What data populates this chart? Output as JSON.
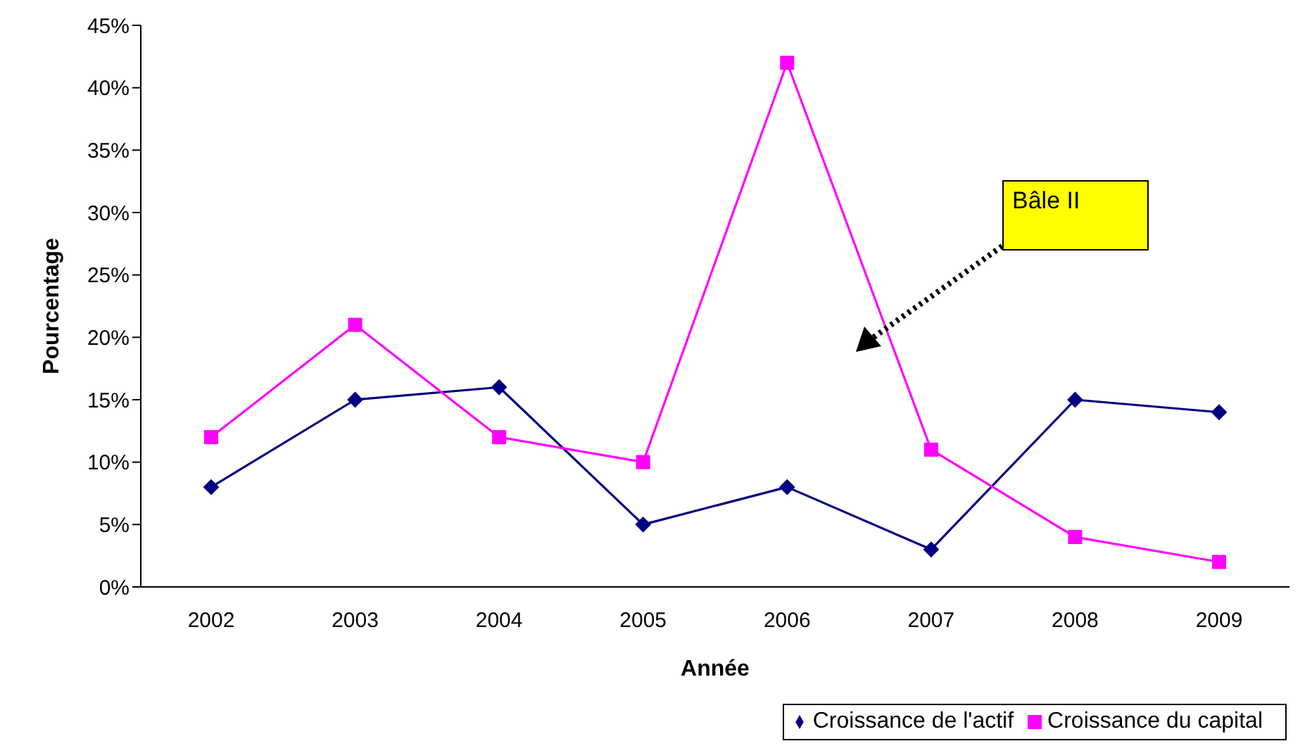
{
  "chart_data": {
    "type": "line",
    "xlabel": "Année",
    "ylabel": "Pourcentage",
    "categories": [
      "2002",
      "2003",
      "2004",
      "2005",
      "2006",
      "2007",
      "2008",
      "2009"
    ],
    "series": [
      {
        "name": "Croissance de l'actif",
        "color": "#000080",
        "marker": "diamond",
        "values": [
          8,
          15,
          16,
          5,
          8,
          3,
          15,
          14
        ]
      },
      {
        "name": "Croissance du capital",
        "color": "#ff00ff",
        "marker": "square",
        "values": [
          12,
          21,
          12,
          10,
          42,
          11,
          4,
          2
        ]
      }
    ],
    "ylim": [
      0,
      45
    ],
    "yticks": [
      {
        "value": 0,
        "label": "0%"
      },
      {
        "value": 5,
        "label": "5%"
      },
      {
        "value": 10,
        "label": "10%"
      },
      {
        "value": 15,
        "label": "15%"
      },
      {
        "value": 20,
        "label": "20%"
      },
      {
        "value": 25,
        "label": "25%"
      },
      {
        "value": 30,
        "label": "30%"
      },
      {
        "value": 35,
        "label": "35%"
      },
      {
        "value": 40,
        "label": "40%"
      },
      {
        "value": 45,
        "label": "45%"
      }
    ],
    "grid": false,
    "legend": "bottom right",
    "line_style": "solid",
    "annotations": [
      "Bâle II"
    ]
  }
}
